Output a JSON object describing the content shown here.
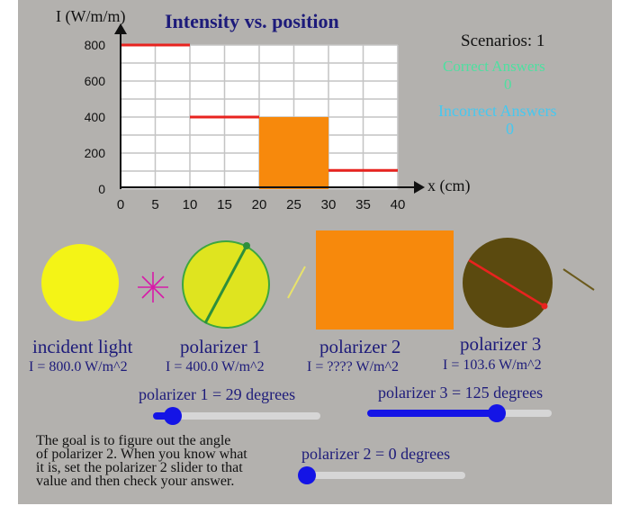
{
  "chart_data": {
    "type": "bar",
    "title": "Intensity vs. position",
    "ylabel": "I (W/m/m)",
    "xlabel": "x (cm)",
    "x_ticks": [
      "0",
      "5",
      "10",
      "15",
      "20",
      "25",
      "30",
      "35",
      "40"
    ],
    "y_ticks": [
      "0",
      "200",
      "400",
      "600",
      "800"
    ],
    "xlim": [
      0,
      40
    ],
    "ylim": [
      0,
      800
    ],
    "grid": true,
    "segments": [
      {
        "x_start": 0,
        "x_end": 10,
        "value": 800,
        "style": "line",
        "color": "#e8231f"
      },
      {
        "x_start": 10,
        "x_end": 20,
        "value": 400,
        "style": "line",
        "color": "#e8231f"
      },
      {
        "x_start": 20,
        "x_end": 30,
        "value": 400,
        "style": "bar",
        "color": "#f7890c"
      },
      {
        "x_start": 30,
        "x_end": 40,
        "value": 103.6,
        "style": "line",
        "color": "#e8231f"
      }
    ]
  },
  "score": {
    "scenarios": "Scenarios: 1",
    "correct_label": "Correct Answers",
    "correct_value": "0",
    "incorrect_label": "Incorrect Answers",
    "incorrect_value": "0"
  },
  "stages": {
    "incident": {
      "name": "incident light",
      "intensity": "I = 800.0 W/m^2",
      "color": "#f4f416"
    },
    "polarizer1": {
      "name": "polarizer 1",
      "intensity": "I = 400.0 W/m^2",
      "color": "#dfe41f",
      "angle": 29
    },
    "polarizer2": {
      "name": "polarizer 2",
      "intensity": "I = ???? W/m^2",
      "color": "#f7890c",
      "angle": 0
    },
    "polarizer3": {
      "name": "polarizer 3",
      "intensity": "I = 103.6 W/m^2",
      "color": "#5b4a0f",
      "angle": 125
    }
  },
  "sliders": {
    "polarizer1": {
      "label": "polarizer 1 = 29 degrees",
      "fraction": 0.12
    },
    "polarizer3": {
      "label": "polarizer 3 = 125 degrees",
      "fraction": 0.7
    },
    "polarizer2": {
      "label": "polarizer 2 = 0 degrees",
      "fraction": 0.0
    }
  },
  "instructions": {
    "line1": "The goal is to figure out the angle",
    "line2": "of polarizer 2. When you know what",
    "line3": "it is, set the polarizer 2 slider to that",
    "line4": "value and then check your answer."
  },
  "colors": {
    "panel": "#b3b1ae",
    "title": "#1d1b7a",
    "correct": "#4de0a0",
    "incorrect": "#46c8f0",
    "slider": "#1414e6"
  }
}
